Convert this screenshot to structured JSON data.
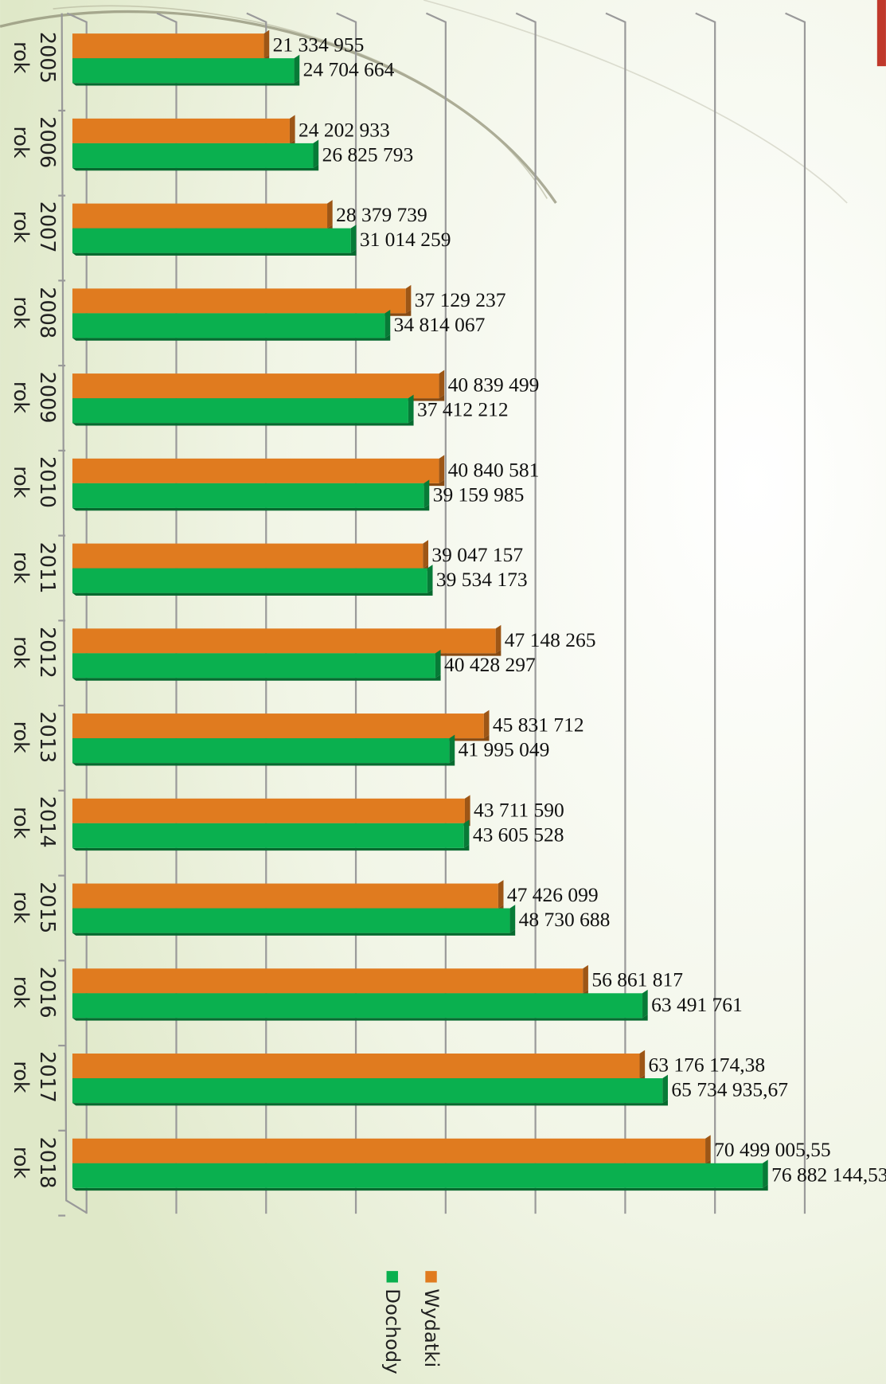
{
  "chart_data": {
    "type": "bar",
    "orientation": "horizontal",
    "categories": [
      "2005 rok",
      "2006 rok",
      "2007 rok",
      "2008 rok",
      "2009 rok",
      "2010 rok",
      "2011 rok",
      "2012 rok",
      "2013 rok",
      "2014 rok",
      "2015 rok",
      "2016 rok",
      "2017 rok",
      "2018 rok"
    ],
    "series": [
      {
        "name": "Wydatki",
        "color": "#e07b1f",
        "values": [
          21334955,
          24202933,
          28379739,
          37129237,
          40839499,
          40840581,
          39047157,
          47148265,
          45831712,
          43711590,
          47426099,
          56861817,
          63176174.38,
          70499005.55
        ],
        "value_labels": [
          "21 334 955",
          "24 202 933",
          "28 379 739",
          "37 129 237",
          "40 839 499",
          "40 840 581",
          "39 047 157",
          "47 148 265",
          "45 831 712",
          "43 711 590",
          "47 426 099",
          "56 861 817",
          "63 176 174,38",
          "70 499 005,55"
        ]
      },
      {
        "name": "Dochody",
        "color": "#0ab04f",
        "values": [
          24704664,
          26825793,
          31014259,
          34814067,
          37412212,
          39159985,
          39534173,
          40428297,
          41995049,
          43605528,
          48730688,
          63491761,
          65734935.67,
          76882144.53
        ],
        "value_labels": [
          "24 704 664",
          "26 825 793",
          "31 014 259",
          "34 814 067",
          "37 412 212",
          "39 159 985",
          "39 534 173",
          "40 428 297",
          "41 995 049",
          "43 605 528",
          "48 730 688",
          "63 491 761",
          "65 734 935,67",
          "76 882 144,53"
        ]
      }
    ],
    "xlim": [
      0,
      80000000
    ],
    "xticks": [
      0,
      10000000,
      20000000,
      30000000,
      40000000,
      50000000,
      60000000,
      70000000,
      80000000
    ],
    "grid": true,
    "legend": "bottom"
  }
}
